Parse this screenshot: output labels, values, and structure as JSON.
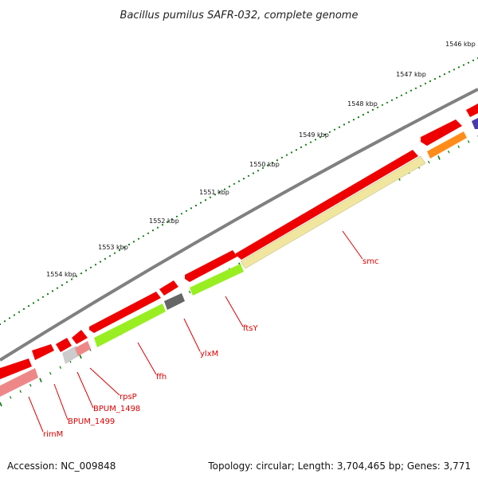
{
  "title": "Bacillus pumilus SAFR-032, complete genome",
  "footer": {
    "accession_label": "Accession:",
    "accession": "NC_009848",
    "summary": "Topology: circular; Length: 3,704,465 bp; Genes: 3,771"
  },
  "colors": {
    "backbone": "#808080",
    "tick": "#0b7a0b",
    "gene_arrow": "#ee0000",
    "cds_category": {
      "orange": "#ff8c1a",
      "yellow": "#f0e6a0",
      "lime": "#99ee22",
      "grey": "#666666",
      "light_grey": "#cccccc",
      "pink": "#ee8888",
      "purple": "#4a3aa8"
    },
    "label_text": "#dd0000"
  },
  "ticks": [
    "1546 kbp",
    "1547 kbp",
    "1548 kbp",
    "1549 kbp",
    "1550 kbp",
    "1551 kbp",
    "1552 kbp",
    "1553 kbp",
    "1554 kbp"
  ],
  "gene_labels": [
    "smc",
    "ftsY",
    "ylxM",
    "ffh",
    "rpsP",
    "BPUM_1498",
    "BPUM_1499",
    "rimM"
  ]
}
